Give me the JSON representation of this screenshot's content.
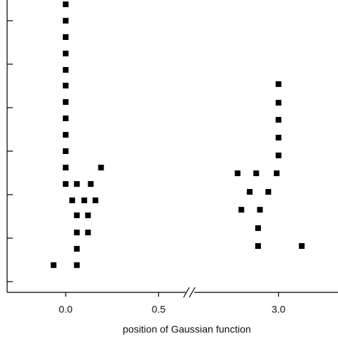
{
  "chart_data": {
    "type": "scatter",
    "x_label": "position of Gaussian function",
    "x": [
      0,
      0,
      0,
      0,
      0,
      0,
      0,
      0,
      0,
      0,
      0,
      0,
      -0.065,
      0.035,
      0.06,
      0.06,
      0.06,
      0.06,
      0.06,
      0.1,
      0.12,
      0.12,
      0.135,
      0.16,
      0.19,
      2.78,
      2.8,
      2.845,
      2.88,
      2.89,
      2.89,
      2.9,
      2.945,
      2.99,
      3.0,
      3.0,
      3.0,
      3.0,
      3.0,
      3.125
    ],
    "values": [
      2380000,
      1000000,
      420000,
      176000,
      74000,
      32200,
      13500,
      5680,
      2380,
      1000,
      420,
      176,
      2.4,
      74,
      176,
      33.5,
      13.5,
      5.7,
      2.4,
      74,
      33.5,
      13.5,
      176,
      74,
      420,
      310,
      45,
      116,
      310,
      17,
      6.6,
      45,
      116,
      310,
      34800,
      13000,
      5260,
      2050,
      800,
      6.6
    ],
    "color": "#000000",
    "xlim": [
      -0.315,
      3.32
    ],
    "x_break": [
      0.665,
      2.52
    ],
    "xticks": [
      {
        "value": 0,
        "label": "0.0"
      },
      {
        "value": 0.5,
        "label": "0.5"
      },
      {
        "value": 3,
        "label": "3.0"
      }
    ],
    "ylim": [
      0.567,
      2990000
    ],
    "y_scale": "log",
    "yticks": [
      1,
      10,
      100,
      1000,
      10000,
      100000,
      1000000
    ]
  }
}
